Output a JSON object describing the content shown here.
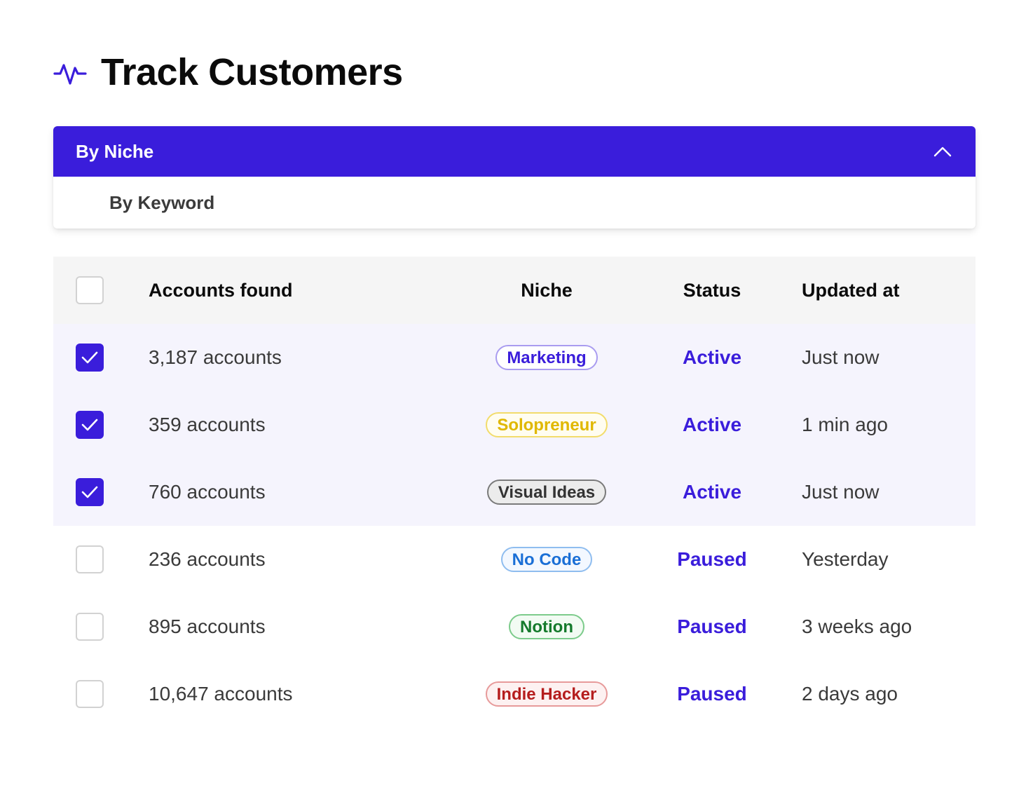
{
  "header": {
    "title": "Track Customers",
    "icon": "activity-icon",
    "icon_color": "#3a1ddb"
  },
  "dropdown": {
    "selected": "By Niche",
    "options": [
      "By Keyword"
    ],
    "expanded": true,
    "accent": "#3a1ddb"
  },
  "table": {
    "columns": {
      "accounts": "Accounts found",
      "niche": "Niche",
      "status": "Status",
      "updated": "Updated at"
    },
    "rows": [
      {
        "checked": true,
        "accounts": "3,187 accounts",
        "niche": "Marketing",
        "niche_color": "#3a1ddb",
        "niche_border": "#a99cf0",
        "niche_bg": "#ffffff",
        "status": "Active",
        "updated": "Just now"
      },
      {
        "checked": true,
        "accounts": "359 accounts",
        "niche": "Solopreneur",
        "niche_color": "#e0b800",
        "niche_border": "#f2dc6b",
        "niche_bg": "#fffdf0",
        "status": "Active",
        "updated": "1 min ago"
      },
      {
        "checked": true,
        "accounts": "760 accounts",
        "niche": "Visual Ideas",
        "niche_color": "#333333",
        "niche_border": "#7a7a7a",
        "niche_bg": "#ececec",
        "status": "Active",
        "updated": "Just now"
      },
      {
        "checked": false,
        "accounts": "236 accounts",
        "niche": "No Code",
        "niche_color": "#1a6fd6",
        "niche_border": "#8fbdef",
        "niche_bg": "#f3f8ff",
        "status": "Paused",
        "updated": "Yesterday"
      },
      {
        "checked": false,
        "accounts": "895 accounts",
        "niche": "Notion",
        "niche_color": "#157a2c",
        "niche_border": "#7ccb8b",
        "niche_bg": "#f2fbf3",
        "status": "Paused",
        "updated": "3 weeks ago"
      },
      {
        "checked": false,
        "accounts": "10,647 accounts",
        "niche": "Indie Hacker",
        "niche_color": "#b51d1d",
        "niche_border": "#e79a9a",
        "niche_bg": "#fdf1f1",
        "status": "Paused",
        "updated": "2 days ago"
      }
    ]
  }
}
